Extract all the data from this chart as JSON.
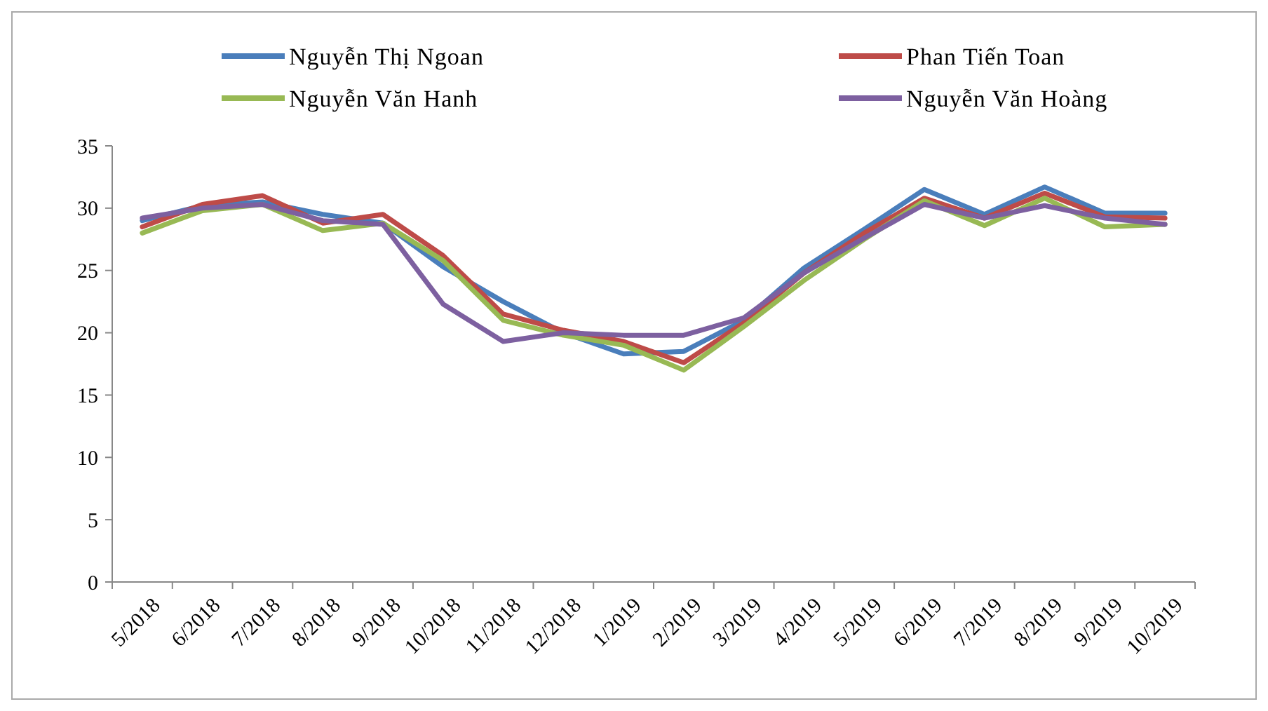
{
  "chart_data": {
    "type": "line",
    "categories": [
      "5/2018",
      "6/2018",
      "7/2018",
      "8/2018",
      "9/2018",
      "10/2018",
      "11/2018",
      "12/2018",
      "1/2019",
      "2/2019",
      "3/2019",
      "4/2019",
      "5/2019",
      "6/2019",
      "7/2019",
      "8/2019",
      "9/2019",
      "10/2019"
    ],
    "series": [
      {
        "name": "Nguyễn Thị Ngoan",
        "color": "#4a7ebb",
        "values": [
          29,
          30.2,
          30.5,
          29.5,
          28.8,
          25.3,
          22.5,
          20,
          18.3,
          18.5,
          21,
          25.2,
          28.3,
          31.5,
          29.5,
          31.7,
          29.6,
          29.6
        ]
      },
      {
        "name": "Phan Tiến Toan",
        "color": "#be4b48",
        "values": [
          28.5,
          30.3,
          31,
          28.8,
          29.5,
          26.2,
          21.5,
          20.2,
          19.3,
          17.6,
          20.8,
          24.8,
          28,
          30.8,
          29.2,
          31.2,
          29.3,
          29.2
        ]
      },
      {
        "name": "Nguyễn Văn Hanh",
        "color": "#98b954",
        "values": [
          28,
          29.8,
          30.3,
          28.2,
          28.8,
          25.8,
          21,
          19.8,
          19,
          17,
          20.5,
          24.2,
          27.5,
          30.6,
          28.6,
          30.8,
          28.5,
          28.7
        ]
      },
      {
        "name": "Nguyễn Văn Hoàng",
        "color": "#7d60a0",
        "values": [
          29.2,
          30,
          30.3,
          29,
          28.7,
          22.3,
          19.3,
          20,
          19.8,
          19.8,
          21.2,
          24.8,
          27.6,
          30.3,
          29.2,
          30.2,
          29.2,
          28.7
        ]
      }
    ],
    "ylim": [
      0,
      35
    ],
    "yticks": [
      0,
      5,
      10,
      15,
      20,
      25,
      30,
      35
    ],
    "grid": false,
    "legend": "top",
    "marker": "none",
    "line_style": "solid"
  }
}
